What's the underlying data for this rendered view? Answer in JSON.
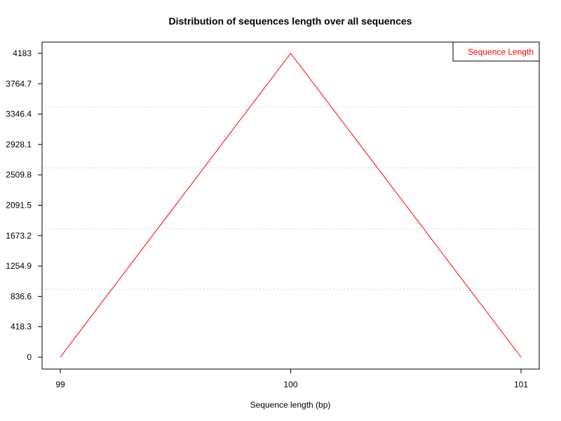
{
  "chart_data": {
    "type": "line",
    "title": "Distribution of sequences length over all sequences",
    "xlabel": "Sequence length (bp)",
    "ylabel": "",
    "x": [
      99,
      100,
      101
    ],
    "series": [
      {
        "name": "Sequence Length",
        "values": [
          0,
          4183,
          0
        ],
        "color": "#ff0000"
      }
    ],
    "x_ticks": [
      "99",
      "100",
      "101"
    ],
    "y_ticks": [
      "0",
      "418.3",
      "836.6",
      "1254.9",
      "1673.2",
      "2091.5",
      "2509.8",
      "2928.1",
      "3346.4",
      "3764.7",
      "4183"
    ],
    "xlim": [
      99,
      101
    ],
    "ylim": [
      0,
      4183
    ],
    "grid": "horizontal dotted",
    "legend_position": "top-right"
  }
}
